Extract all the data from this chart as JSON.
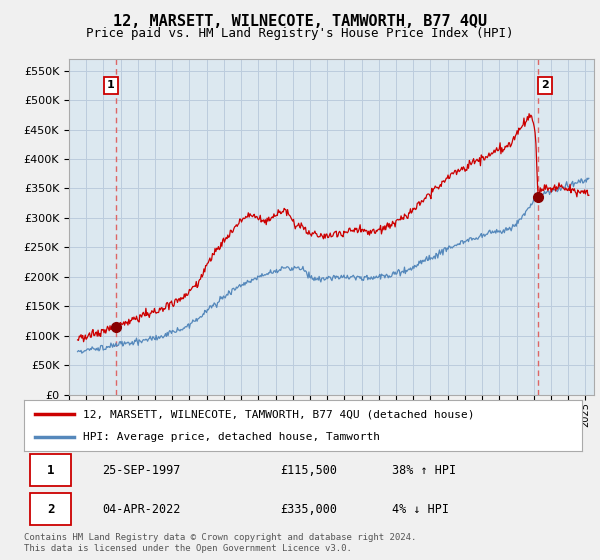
{
  "title": "12, MARSETT, WILNECOTE, TAMWORTH, B77 4QU",
  "subtitle": "Price paid vs. HM Land Registry's House Price Index (HPI)",
  "ylabel_ticks": [
    "£0",
    "£50K",
    "£100K",
    "£150K",
    "£200K",
    "£250K",
    "£300K",
    "£350K",
    "£400K",
    "£450K",
    "£500K",
    "£550K"
  ],
  "ytick_values": [
    0,
    50000,
    100000,
    150000,
    200000,
    250000,
    300000,
    350000,
    400000,
    450000,
    500000,
    550000
  ],
  "ylim": [
    0,
    570000
  ],
  "xlim_start": 1995.3,
  "xlim_end": 2025.5,
  "legend_line1": "12, MARSETT, WILNECOTE, TAMWORTH, B77 4QU (detached house)",
  "legend_line2": "HPI: Average price, detached house, Tamworth",
  "annotation1_label": "1",
  "annotation1_date": "25-SEP-1997",
  "annotation1_price": "£115,500",
  "annotation1_hpi": "38% ↑ HPI",
  "annotation2_label": "2",
  "annotation2_date": "04-APR-2022",
  "annotation2_price": "£335,000",
  "annotation2_hpi": "4% ↓ HPI",
  "footer": "Contains HM Land Registry data © Crown copyright and database right 2024.\nThis data is licensed under the Open Government Licence v3.0.",
  "sale1_x": 1997.74,
  "sale1_y": 115500,
  "sale2_x": 2022.25,
  "sale2_y": 335000,
  "red_line_color": "#cc0000",
  "blue_line_color": "#5588bb",
  "marker_color": "#880000",
  "vline_color": "#dd6666",
  "background_color": "#f0f0f0",
  "plot_bg_color": "#dce8f0",
  "grid_color": "#bbccdd",
  "border_color": "#aaaaaa"
}
